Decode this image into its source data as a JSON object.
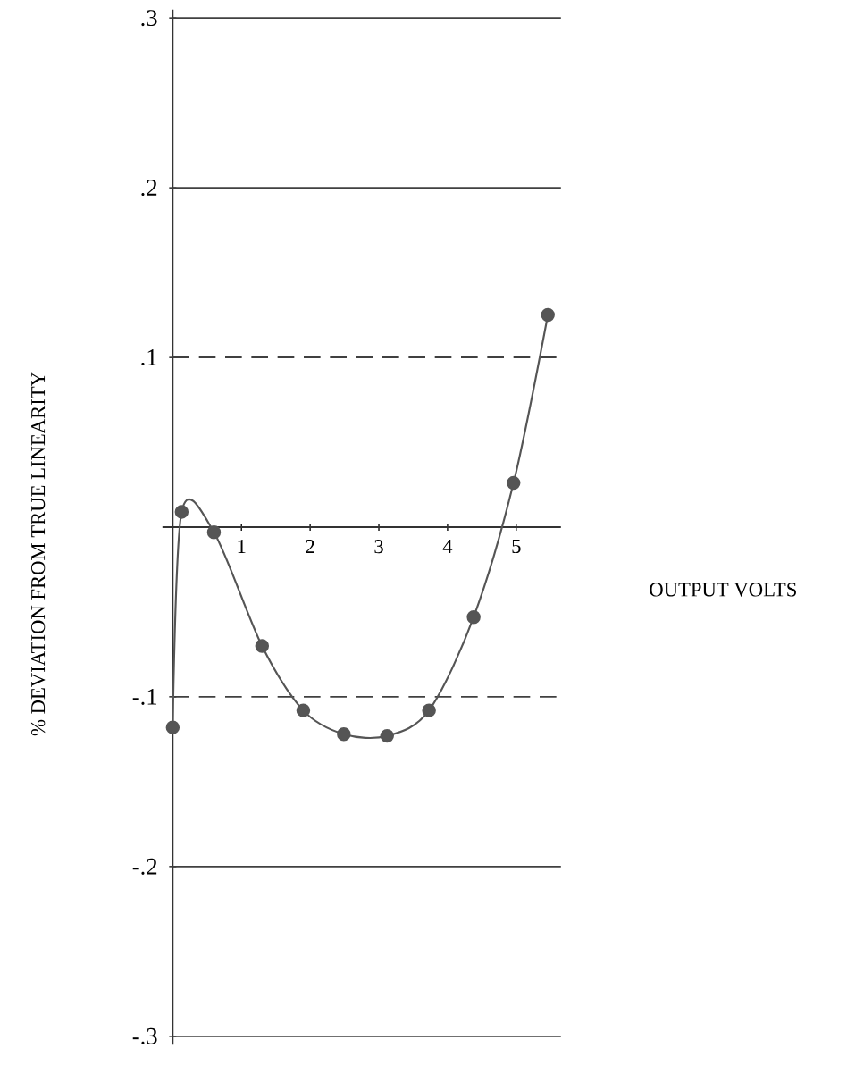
{
  "chart_data": {
    "type": "line",
    "xlabel": "OUTPUT VOLTS",
    "ylabel": "% DEVIATION FROM TRUE LINEARITY",
    "x": [
      0,
      0.13,
      0.6,
      1.3,
      1.9,
      2.49,
      3.12,
      3.73,
      4.38,
      4.96,
      5.46
    ],
    "series": [
      {
        "color": "#555555",
        "values": [
          -0.118,
          0.009,
          -0.003,
          -0.07,
          -0.108,
          -0.122,
          -0.123,
          -0.108,
          -0.053,
          0.026,
          0.125
        ]
      }
    ],
    "xlim": [
      -0.15,
      5.65
    ],
    "ylim": [
      -0.305,
      0.305
    ],
    "xticks": [
      1,
      2,
      3,
      4,
      5
    ],
    "yticks": [
      {
        "value": 0.3,
        "label": ".3"
      },
      {
        "value": 0.2,
        "label": ".2"
      },
      {
        "value": 0.1,
        "label": ".1"
      },
      {
        "value": -0.1,
        "label": "-.1"
      },
      {
        "value": -0.2,
        "label": "-.2"
      },
      {
        "value": -0.3,
        "label": "-.3"
      }
    ],
    "ref_lines": [
      {
        "axis": "y",
        "value": 0.3,
        "line_style": "solid"
      },
      {
        "axis": "y",
        "value": 0.2,
        "line_style": "solid"
      },
      {
        "axis": "y",
        "value": 0.1,
        "line_style": "dashed"
      },
      {
        "axis": "y",
        "value": -0.1,
        "line_style": "dashed"
      },
      {
        "axis": "y",
        "value": -0.2,
        "line_style": "solid"
      },
      {
        "axis": "y",
        "value": -0.3,
        "line_style": "solid"
      }
    ],
    "marker": "circle",
    "line_style": "solid",
    "grid": false
  }
}
